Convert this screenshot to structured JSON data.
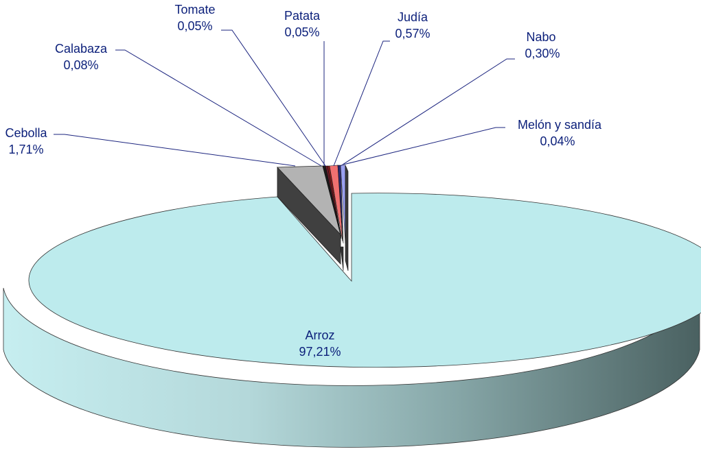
{
  "chart_data": {
    "type": "pie",
    "style": "3d-exploded",
    "slices": [
      {
        "name": "Arroz",
        "pct_label": "97,21%",
        "value": 97.21,
        "color": "#bdebed"
      },
      {
        "name": "Cebolla",
        "pct_label": "1,71%",
        "value": 1.71,
        "color": "#b3b3b3"
      },
      {
        "name": "Calabaza",
        "pct_label": "0,08%",
        "value": 0.08,
        "color": "#1a1a1a"
      },
      {
        "name": "Tomate",
        "pct_label": "0,05%",
        "value": 0.05,
        "color": "#6b1a2a"
      },
      {
        "name": "Patata",
        "pct_label": "0,05%",
        "value": 0.05,
        "color": "#8b1a1a"
      },
      {
        "name": "Judía",
        "pct_label": "0,57%",
        "value": 0.57,
        "color": "#f07070"
      },
      {
        "name": "Nabo",
        "pct_label": "0,30%",
        "value": 0.3,
        "color": "#2a2a70"
      },
      {
        "name": "Melón y sandía",
        "pct_label": "0,04%",
        "value": 0.04,
        "color": "#9aa0f0"
      }
    ]
  }
}
